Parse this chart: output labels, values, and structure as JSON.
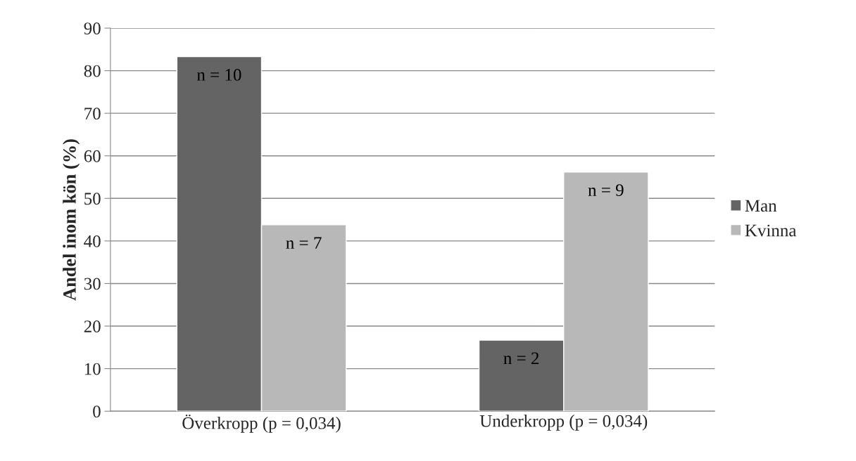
{
  "chart_data": {
    "type": "bar",
    "ylabel": "Andel inom kön (%)",
    "categories": [
      "Överkropp (p = 0,034)",
      "Underkropp (p = 0,034)"
    ],
    "series": [
      {
        "name": "Man",
        "color": "#646464",
        "values": [
          83.3,
          16.7
        ]
      },
      {
        "name": "Kvinna",
        "color": "#b8b8b8",
        "values": [
          43.8,
          56.2
        ]
      }
    ],
    "annotations": [
      {
        "text": "n = 10",
        "x": "Överkropp (p = 0,034)",
        "y": 83.3
      },
      {
        "text": "n = 2",
        "x": "Underkropp (p = 0,034)",
        "y": 16.7
      },
      {
        "text": "n = 7",
        "x": "Överkropp (p = 0,034)",
        "y": 43.8
      },
      {
        "text": "n = 9",
        "x": "Underkropp (p = 0,034)",
        "y": 56.2
      }
    ],
    "ylim": [
      0,
      90
    ],
    "yticks": [
      0,
      10,
      20,
      30,
      40,
      50,
      60,
      70,
      80,
      90
    ],
    "grid": "y",
    "legend": "right"
  }
}
